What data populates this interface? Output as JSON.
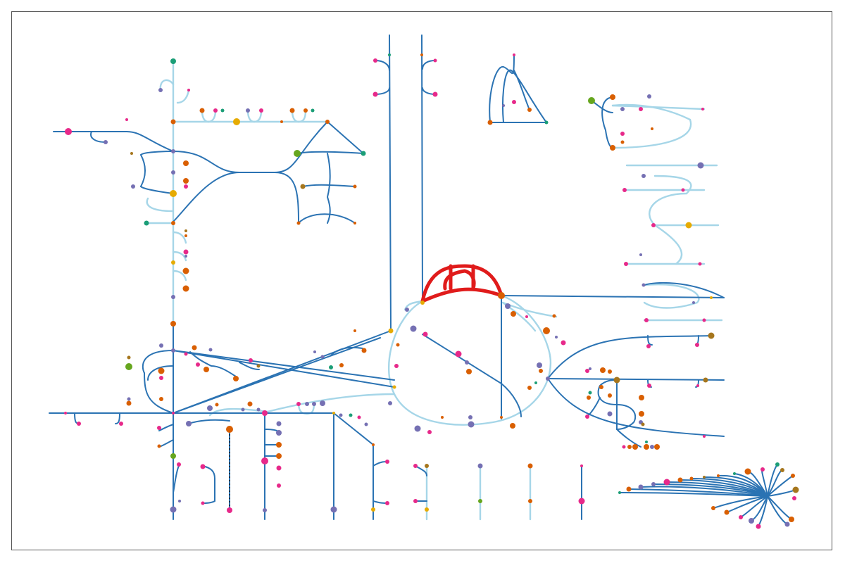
{
  "colors": {
    "background": "#ffffff",
    "frame_border": "#555555",
    "edge_dark": "#2b73b3",
    "edge_light": "#a6d6e8",
    "edge_highlight": "#e01b1b",
    "node_orange": "#d95f02",
    "node_magenta": "#e7298a",
    "node_purple": "#7570b3",
    "node_green": "#1b9e77",
    "node_lime": "#66a61e",
    "node_gold": "#e6ab02",
    "node_brown": "#a6761d"
  },
  "palette": [
    "#d95f02",
    "#e7298a",
    "#7570b3",
    "#1b9e77",
    "#66a61e",
    "#e6ab02",
    "#a6761d"
  ],
  "diagram": {
    "type": "metabolic-pathway-map",
    "highlighted_pathway_color": "#e01b1b"
  }
}
